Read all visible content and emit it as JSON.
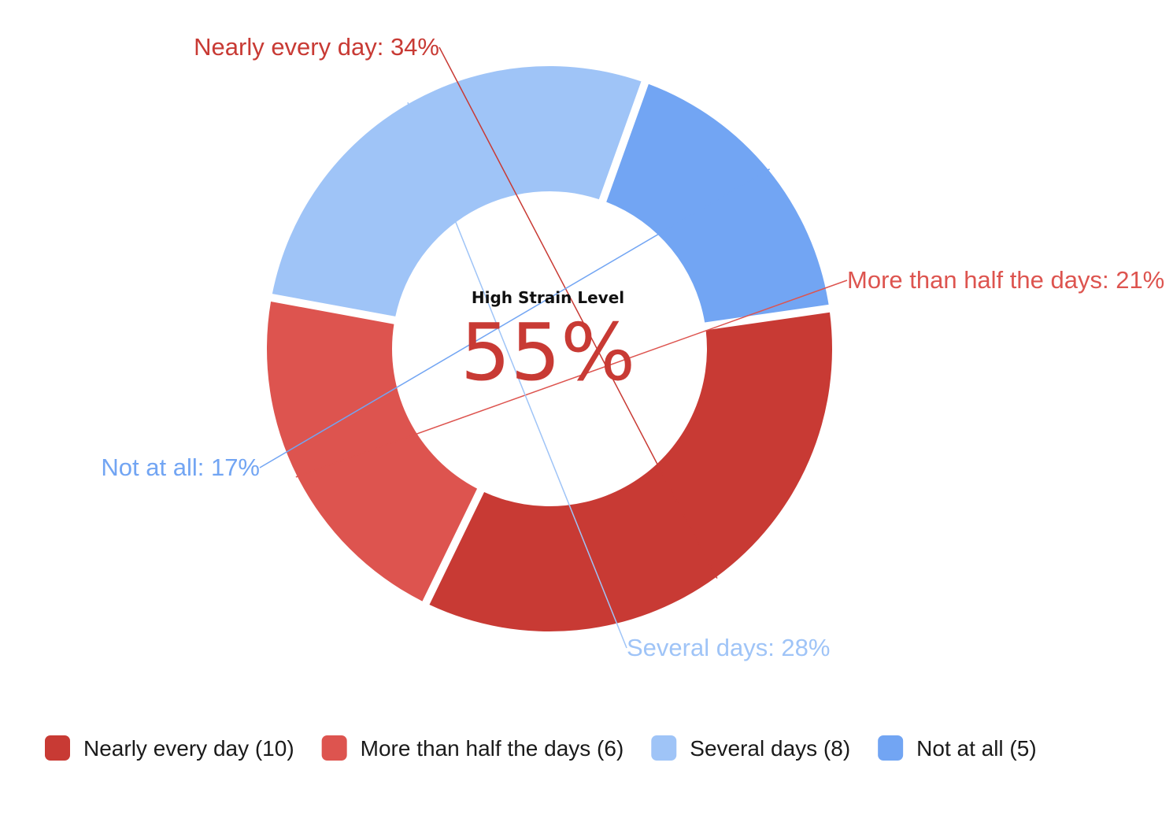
{
  "chart_data": {
    "type": "pie",
    "subtype": "donut",
    "center": {
      "title": "High Strain Level",
      "value": "55%"
    },
    "slices": [
      {
        "name": "Nearly every day",
        "count": 10,
        "percent": 34,
        "label": "Nearly every day: 34%",
        "legend": "Nearly every day (10)",
        "color": "#c83a34"
      },
      {
        "name": "More than half the days",
        "count": 6,
        "percent": 21,
        "label": "More than half the days: 21%",
        "legend": "More than half the days (6)",
        "color": "#dd544f"
      },
      {
        "name": "Several days",
        "count": 8,
        "percent": 28,
        "label": "Several days: 28%",
        "legend": "Several days (8)",
        "color": "#9fc4f7"
      },
      {
        "name": "Not at all",
        "count": 5,
        "percent": 17,
        "label": "Not at all: 17%",
        "legend": "Not at all (5)",
        "color": "#72a5f3"
      }
    ],
    "legend_position": "bottom-left"
  }
}
